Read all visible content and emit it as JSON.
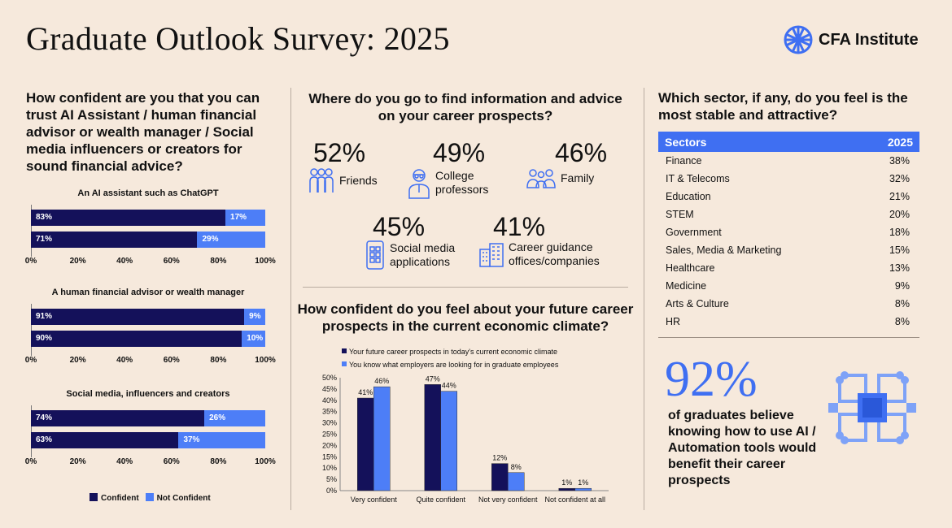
{
  "title": "Graduate Outlook Survey: 2025",
  "logo_text": "CFA Institute",
  "colors": {
    "confident": "#14115a",
    "not_confident": "#4d7ef7",
    "accent": "#3f6ff2",
    "background": "#f6e9dc"
  },
  "left": {
    "question": "How confident are you that you can trust AI Assistant / human financial advisor or wealth  manager / Social media influencers or creators for sound financial advice?",
    "legend": {
      "confident": "Confident",
      "not_confident": "Not Confident"
    },
    "x_ticks": [
      "0%",
      "20%",
      "40%",
      "60%",
      "80%",
      "100%"
    ]
  },
  "middle": {
    "question_info": "Where do you go to find information and advice on your career prospects?",
    "sources": [
      {
        "pct": "52%",
        "label": "Friends",
        "icon": "friends-icon"
      },
      {
        "pct": "49%",
        "label": "College professors",
        "icon": "professor-icon"
      },
      {
        "pct": "46%",
        "label": "Family",
        "icon": "family-icon"
      },
      {
        "pct": "45%",
        "label": "Social media applications",
        "icon": "phone-apps-icon"
      },
      {
        "pct": "41%",
        "label": "Career guidance offices/companies",
        "icon": "office-building-icon"
      }
    ],
    "question_confidence": "How confident do you feel about your future career prospects in the current economic climate?"
  },
  "right": {
    "question": "Which sector, if any, do you feel is the most stable and attractive?",
    "table_headers": [
      "Sectors",
      "2025"
    ],
    "rows": [
      {
        "sector": "Finance",
        "value": "38%"
      },
      {
        "sector": "IT & Telecoms",
        "value": "32%"
      },
      {
        "sector": "Education",
        "value": "21%"
      },
      {
        "sector": "STEM",
        "value": "20%"
      },
      {
        "sector": "Government",
        "value": "18%"
      },
      {
        "sector": "Sales, Media & Marketing",
        "value": "15%"
      },
      {
        "sector": "Healthcare",
        "value": "13%"
      },
      {
        "sector": "Medicine",
        "value": "9%"
      },
      {
        "sector": "Arts & Culture",
        "value": "8%"
      },
      {
        "sector": "HR",
        "value": "8%"
      }
    ],
    "big_stat": "92%",
    "big_stat_text": "of graduates believe knowing how to use AI / Automation tools would benefit their career prospects",
    "icon": "ai-chip-icon"
  },
  "chart_data": [
    {
      "type": "bar",
      "orientation": "horizontal",
      "stacked": true,
      "title": "An AI assistant such as ChatGPT",
      "series": [
        {
          "name": "Confident",
          "values": [
            83,
            71
          ]
        },
        {
          "name": "Not Confident",
          "values": [
            17,
            29
          ]
        }
      ],
      "xlim": [
        0,
        100
      ]
    },
    {
      "type": "bar",
      "orientation": "horizontal",
      "stacked": true,
      "title": "A human financial advisor or wealth manager",
      "series": [
        {
          "name": "Confident",
          "values": [
            91,
            90
          ]
        },
        {
          "name": "Not Confident",
          "values": [
            9,
            10
          ]
        }
      ],
      "xlim": [
        0,
        100
      ]
    },
    {
      "type": "bar",
      "orientation": "horizontal",
      "stacked": true,
      "title": "Social media, influencers and creators",
      "series": [
        {
          "name": "Confident",
          "values": [
            74,
            63
          ]
        },
        {
          "name": "Not Confident",
          "values": [
            26,
            37
          ]
        }
      ],
      "xlim": [
        0,
        100
      ]
    },
    {
      "type": "bar",
      "categories": [
        "Very confident",
        "Quite confident",
        "Not very confident",
        "Not confident at all"
      ],
      "series": [
        {
          "name": "Your future career prospects in today's current economic climate",
          "values": [
            41,
            47,
            12,
            1
          ]
        },
        {
          "name": "You know what employers are looking for in graduate employees",
          "values": [
            46,
            44,
            8,
            1
          ]
        }
      ],
      "ylim": [
        0,
        50
      ],
      "y_ticks": [
        "0%",
        "5%",
        "10%",
        "15%",
        "20%",
        "25%",
        "30%",
        "35%",
        "40%",
        "45%",
        "50%"
      ],
      "legend": "top"
    }
  ]
}
